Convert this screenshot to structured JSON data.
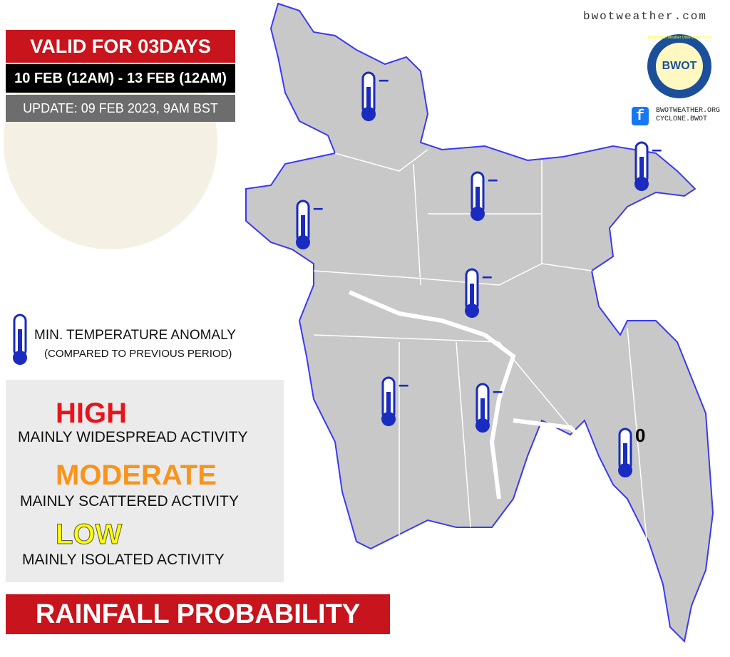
{
  "header": {
    "site": "bwotweather.com",
    "valid": "VALID FOR 03DAYS",
    "period": "10 FEB (12AM) - 13 FEB (12AM)",
    "update": "UPDATE: 09 FEB 2023, 9AM BST"
  },
  "logo": {
    "text": "BWOT",
    "ring": "Bangladesh Weather Observation Team"
  },
  "social": {
    "website": "BWOTWEATHER.ORG",
    "page": "CYCLONE.BWOT"
  },
  "temperature_legend": {
    "title": "MIN. TEMPERATURE ANOMALY",
    "note": "(COMPARED TO PREVIOUS PERIOD)"
  },
  "levels": [
    {
      "name": "HIGH",
      "description": "MAINLY WIDESPREAD ACTIVITY",
      "color": "#e8141c"
    },
    {
      "name": "MODERATE",
      "description": "MAINLY SCATTERED ACTIVITY",
      "color": "#f7941d"
    },
    {
      "name": "LOW",
      "description": "MAINLY ISOLATED ACTIVITY",
      "color": "#ffff00"
    }
  ],
  "footer": {
    "title": "RAINFALL PROBABILITY"
  },
  "stations": [
    {
      "anomaly": "–"
    },
    {
      "anomaly": "–"
    },
    {
      "anomaly": "–"
    },
    {
      "anomaly": "–"
    },
    {
      "anomaly": "–"
    },
    {
      "anomaly": "–"
    },
    {
      "anomaly": "–"
    },
    {
      "anomaly": "0"
    }
  ]
}
